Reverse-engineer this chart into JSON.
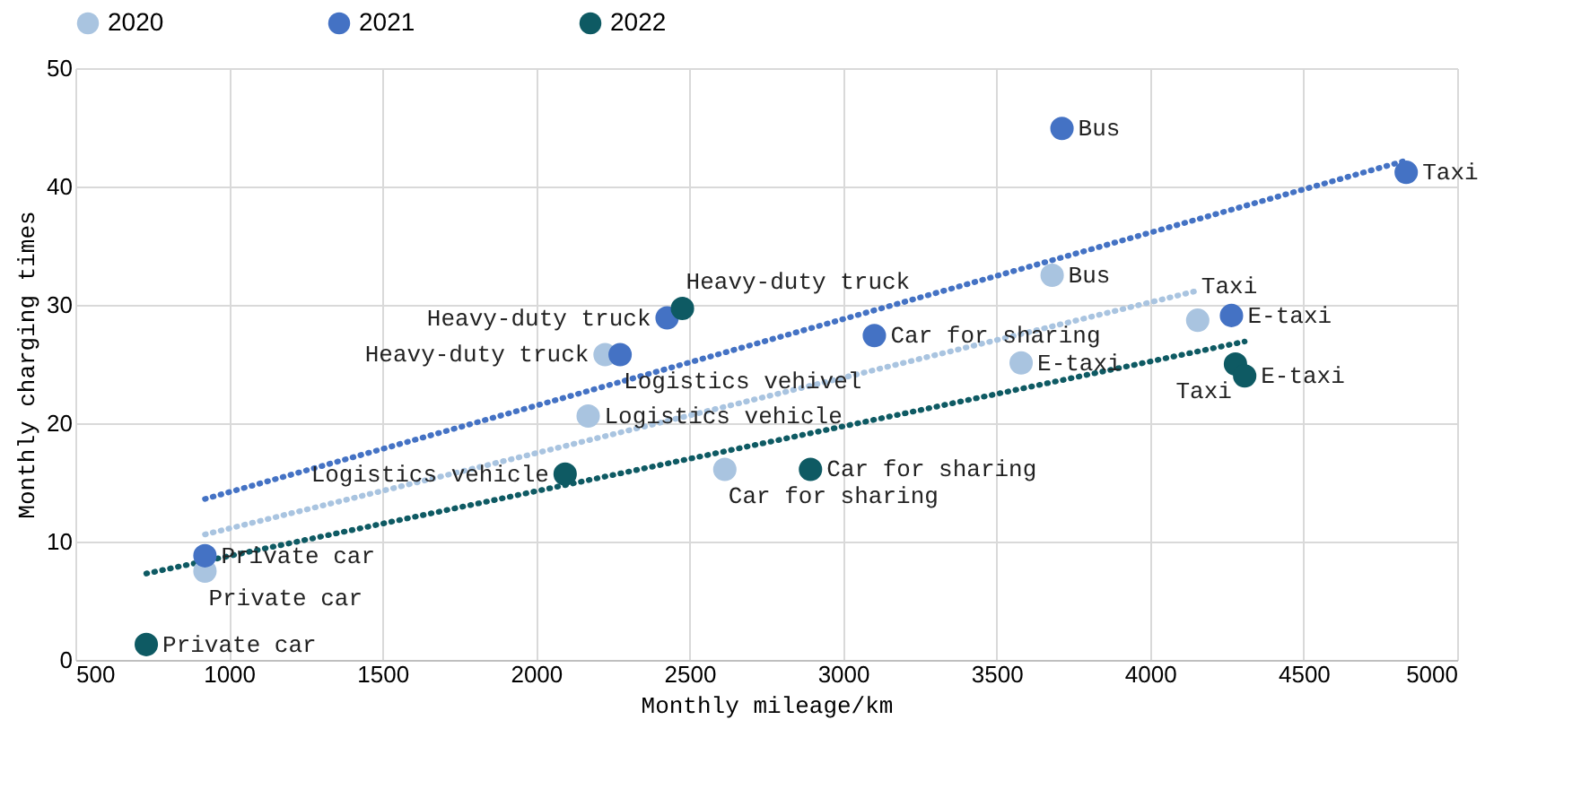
{
  "chart_data": {
    "type": "scatter",
    "xlabel": "Monthly mileage/km",
    "ylabel": "Monthly charging times",
    "xlim": [
      500,
      5000
    ],
    "xticks": [
      500,
      1000,
      1500,
      2000,
      2500,
      3000,
      3500,
      4000,
      4500,
      5000
    ],
    "ylim": [
      0,
      50
    ],
    "yticks": [
      0,
      10,
      20,
      30,
      40,
      50
    ],
    "grid": true,
    "legend": "top",
    "marker": "circle",
    "series": [
      {
        "name": "2020",
        "color": "#a9c4e0",
        "x": [
          922,
          2225,
          2170,
          2615,
          3580,
          3681,
          4155
        ],
        "values": [
          7.5,
          25.8,
          20.6,
          16.1,
          25.1,
          32.5,
          28.7
        ],
        "value_labels": [
          "Private car",
          "Heavy-duty truck",
          "Logistics vehicle",
          "Car for sharing",
          "E-taxi",
          "Bus",
          "Taxi"
        ]
      },
      {
        "name": "2021",
        "color": "#4472c4",
        "x": [
          922,
          2427,
          2274,
          3102,
          3713,
          4265,
          4834
        ],
        "values": [
          8.8,
          28.9,
          25.8,
          27.4,
          44.9,
          29.1,
          41.2
        ],
        "value_labels": [
          "Private car",
          "Heavy-duty truck",
          "Logistics vehivel",
          "Car for sharing",
          "Bus",
          "E-taxi",
          "Taxi"
        ]
      },
      {
        "name": "2022",
        "color": "#0e5a63",
        "x": [
          731,
          2477,
          2095,
          2894,
          4278,
          4308
        ],
        "values": [
          1.3,
          29.7,
          15.7,
          16.1,
          25.0,
          24.0
        ],
        "value_labels": [
          "Private car",
          "Heavy-duty truck",
          "Logistics vehicle",
          "Car for sharing",
          "Taxi",
          "E-taxi"
        ]
      },
      {
        "type": "line",
        "line_style": "dotted",
        "marker": "none",
        "color": "#a9c4e0",
        "x": [
          922,
          4155
        ],
        "values": [
          10.6,
          31.2
        ]
      },
      {
        "type": "line",
        "line_style": "dotted",
        "marker": "none",
        "color": "#4472c4",
        "x": [
          922,
          4834
        ],
        "values": [
          13.6,
          42.2
        ]
      },
      {
        "type": "line",
        "line_style": "dotted",
        "marker": "none",
        "color": "#0e5a63",
        "x": [
          731,
          4308
        ],
        "values": [
          7.3,
          26.9
        ]
      }
    ]
  }
}
